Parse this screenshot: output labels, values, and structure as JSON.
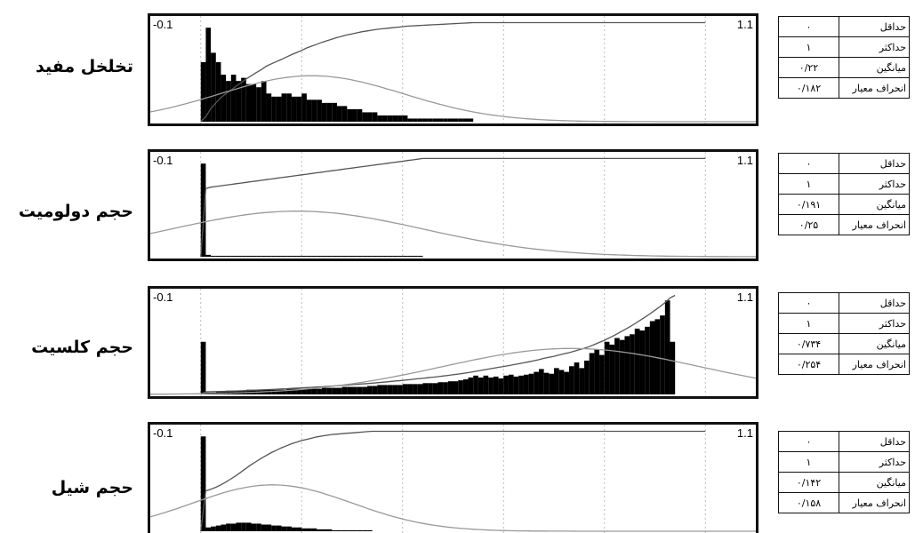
{
  "chart_data": [
    {
      "type": "bar",
      "title": "تخلخل مفید",
      "xlim": [
        -0.1,
        1.1
      ],
      "axis_min_label": "-0.1",
      "axis_max_label": "1.1",
      "grid": true,
      "bin_start": 0.0,
      "bin_width": 0.01,
      "values": [
        19,
        30,
        22,
        19,
        15,
        13,
        15,
        13,
        14,
        12,
        12,
        11,
        13,
        9,
        8,
        8,
        9,
        9,
        8,
        8,
        9,
        7,
        7,
        7,
        6,
        6,
        6,
        5,
        5,
        4,
        4,
        4,
        3,
        3,
        3,
        2,
        2,
        2,
        2,
        2,
        2,
        1,
        1,
        1,
        1,
        1,
        1,
        1,
        1,
        1,
        1,
        1,
        1,
        1,
        0,
        0,
        0,
        0,
        0,
        0,
        0,
        0,
        0,
        0,
        0,
        0,
        0,
        0,
        0,
        0,
        0,
        0,
        0,
        0,
        0,
        0,
        0,
        0,
        0,
        0,
        0,
        0,
        0,
        0,
        0,
        0,
        0,
        0,
        0,
        0,
        0,
        0,
        0,
        0,
        0,
        0,
        0,
        0,
        0,
        0
      ],
      "stats": [
        {
          "name": "حداقل",
          "value": "۰"
        },
        {
          "name": "حداکثر",
          "value": "۱"
        },
        {
          "name": "میانگین",
          "value": "۰/۲۲"
        },
        {
          "name": "انحراف معیار",
          "value": "۰/۱۸۲"
        }
      ]
    },
    {
      "type": "bar",
      "title": "حجم دولومیت",
      "xlim": [
        -0.1,
        1.1
      ],
      "axis_min_label": "-0.1",
      "axis_max_label": "1.1",
      "grid": true,
      "bin_start": 0.0,
      "bin_width": 0.01,
      "values": [
        100,
        2,
        1,
        1,
        1,
        1,
        1,
        1,
        1,
        1,
        1,
        1,
        1,
        1,
        1,
        1,
        1,
        1,
        1,
        1,
        1,
        1,
        1,
        1,
        1,
        1,
        1,
        1,
        1,
        1,
        1,
        1,
        1,
        1,
        1,
        1,
        1,
        1,
        1,
        1,
        1,
        1,
        1,
        1,
        0,
        0,
        0,
        0,
        0,
        0,
        0,
        0,
        0,
        0,
        0,
        0,
        0,
        0,
        0,
        0,
        0,
        0,
        0,
        0,
        0,
        0,
        0,
        0,
        0,
        0,
        0,
        0,
        0,
        0,
        0,
        0,
        0,
        0,
        0,
        0,
        0,
        0,
        0,
        0,
        0,
        0,
        0,
        0,
        0,
        0,
        0,
        0,
        0,
        0,
        0,
        0,
        0,
        0,
        0,
        0
      ],
      "stats": [
        {
          "name": "حداقل",
          "value": "۰"
        },
        {
          "name": "حداکثر",
          "value": "۱"
        },
        {
          "name": "میانگین",
          "value": "۰/۱۹۱"
        },
        {
          "name": "انحراف معیار",
          "value": "۰/۲۵"
        }
      ]
    },
    {
      "type": "bar",
      "title": "حجم کلسیت",
      "xlim": [
        -0.1,
        1.1
      ],
      "axis_min_label": "-0.1",
      "axis_max_label": "1.1",
      "grid": true,
      "bin_start": 0.0,
      "bin_width": 0.01,
      "values": [
        56,
        2,
        2,
        3,
        3,
        4,
        4,
        4,
        4,
        5,
        5,
        5,
        5,
        5,
        5,
        5,
        5,
        6,
        6,
        6,
        6,
        6,
        6,
        6,
        7,
        7,
        7,
        7,
        8,
        8,
        8,
        8,
        8,
        9,
        9,
        10,
        10,
        10,
        10,
        10,
        11,
        11,
        11,
        11,
        12,
        12,
        12,
        13,
        13,
        14,
        14,
        15,
        16,
        18,
        20,
        18,
        20,
        18,
        19,
        17,
        20,
        21,
        19,
        20,
        21,
        22,
        24,
        27,
        23,
        22,
        28,
        26,
        24,
        30,
        34,
        28,
        36,
        44,
        48,
        42,
        56,
        53,
        60,
        58,
        62,
        64,
        70,
        68,
        72,
        78,
        80,
        84,
        100,
        56
      ],
      "stats": [
        {
          "name": "حداقل",
          "value": "۰"
        },
        {
          "name": "حداکثر",
          "value": "۱"
        },
        {
          "name": "میانگین",
          "value": "۰/۷۳۴"
        },
        {
          "name": "انحراف معیار",
          "value": "۰/۲۵۴"
        }
      ]
    },
    {
      "type": "bar",
      "title": "حجم شیل",
      "xlim": [
        -0.1,
        1.1
      ],
      "axis_min_label": "-0.1",
      "axis_max_label": "1.1",
      "grid": true,
      "bin_start": 0.0,
      "bin_width": 0.01,
      "values": [
        100,
        4,
        5,
        6,
        7,
        8,
        8,
        9,
        9,
        9,
        8,
        8,
        7,
        7,
        6,
        6,
        5,
        5,
        4,
        4,
        3,
        3,
        3,
        2,
        2,
        2,
        1,
        1,
        1,
        1,
        1,
        1,
        1,
        1,
        0,
        0,
        0,
        0,
        0,
        0,
        0,
        0,
        0,
        0,
        0,
        0,
        0,
        0,
        0,
        0,
        0,
        0,
        0,
        0,
        0,
        0,
        0,
        0,
        0,
        0,
        0,
        0,
        0,
        0,
        0,
        0,
        0,
        0,
        0,
        0,
        0,
        0,
        0,
        0,
        0,
        0,
        0,
        0,
        0,
        0,
        0,
        0,
        0,
        0,
        0,
        0,
        0,
        0,
        0,
        0,
        0,
        0,
        0,
        0,
        0,
        0,
        0,
        0,
        0,
        0
      ],
      "stats": [
        {
          "name": "حداقل",
          "value": "۰"
        },
        {
          "name": "حداکثر",
          "value": "۱"
        },
        {
          "name": "میانگین",
          "value": "۰/۱۴۲"
        },
        {
          "name": "انحراف معیار",
          "value": "۰/۱۵۸"
        }
      ]
    }
  ]
}
